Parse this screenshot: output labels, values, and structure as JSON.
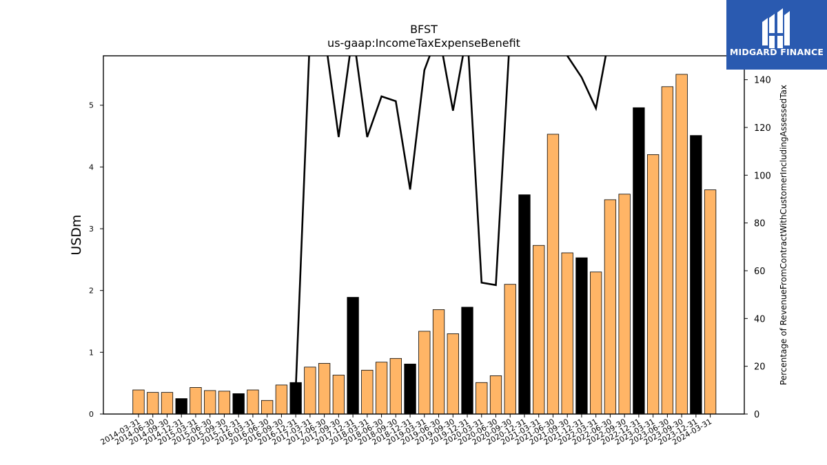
{
  "brand": {
    "name": "MIDGARD FINANCE",
    "bg_color": "#2a5ab0"
  },
  "colors": {
    "annual_bar": "#000000",
    "quarter_bar": "#ffb566",
    "line": "#000000"
  },
  "chart_data": {
    "type": "bar",
    "title": "BFST",
    "subtitle": "us-gaap:IncomeTaxExpenseBenefit",
    "ylabel": "USDm",
    "y2label": "Percentage of RevenueFromContractWithCustomerIncludingAssessedTax",
    "ylim": [
      0,
      5.8
    ],
    "y2lim": [
      0,
      150
    ],
    "yticks": [
      0,
      1,
      2,
      3,
      4,
      5
    ],
    "y2ticks": [
      0,
      20,
      40,
      60,
      80,
      100,
      120,
      140
    ],
    "categories": [
      "2014-03-31",
      "2014-06-30",
      "2014-09-30",
      "2014-12-31",
      "2015-03-31",
      "2015-06-30",
      "2015-09-30",
      "2015-12-31",
      "2016-03-31",
      "2016-06-30",
      "2016-09-30",
      "2016-12-31",
      "2017-03-31",
      "2017-06-30",
      "2017-09-30",
      "2017-12-31",
      "2018-03-31",
      "2018-06-30",
      "2018-09-30",
      "2018-12-31",
      "2019-03-31",
      "2019-06-30",
      "2019-09-30",
      "2019-12-31",
      "2020-03-31",
      "2020-06-30",
      "2020-09-30",
      "2020-12-31",
      "2021-03-31",
      "2021-06-30",
      "2021-09-30",
      "2021-12-31",
      "2022-03-31",
      "2022-06-30",
      "2022-09-30",
      "2022-12-31",
      "2023-03-31",
      "2023-06-30",
      "2023-09-30",
      "2023-12-31",
      "2024-03-31"
    ],
    "series": [
      {
        "values": [
          0.39,
          0.35,
          0.35,
          0.25,
          0.43,
          0.38,
          0.37,
          0.33,
          0.39,
          0.22,
          0.47,
          0.51,
          0.76,
          0.82,
          0.63,
          1.89,
          0.71,
          0.84,
          0.9,
          0.81,
          1.34,
          1.69,
          1.3,
          1.73,
          0.51,
          0.62,
          2.1,
          3.55,
          2.73,
          4.53,
          2.61,
          2.53,
          2.3,
          3.47,
          3.56,
          4.96,
          4.2,
          5.3,
          5.5,
          4.51,
          3.63
        ],
        "annual_flags": [
          0,
          0,
          0,
          1,
          0,
          0,
          0,
          1,
          0,
          0,
          0,
          1,
          0,
          0,
          0,
          1,
          0,
          0,
          0,
          1,
          0,
          0,
          0,
          1,
          0,
          0,
          0,
          1,
          0,
          0,
          0,
          1,
          0,
          0,
          0,
          1,
          0,
          0,
          0,
          1,
          0
        ]
      },
      {
        "values": [
          null,
          null,
          null,
          null,
          null,
          null,
          null,
          null,
          null,
          null,
          null,
          10,
          160,
          160,
          116,
          160,
          116,
          133,
          131,
          94,
          144,
          160,
          127,
          160,
          55,
          54,
          160,
          160,
          160,
          160,
          150,
          141,
          128,
          160,
          160,
          160,
          160,
          160,
          160,
          160,
          150
        ]
      }
    ],
    "grid": false
  }
}
